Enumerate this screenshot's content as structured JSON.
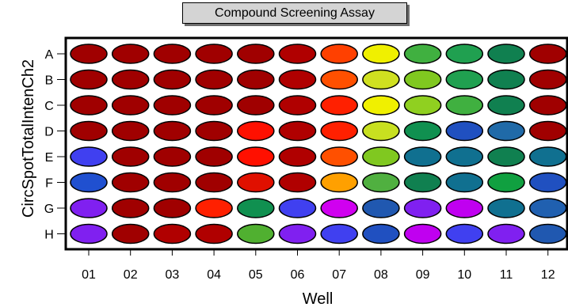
{
  "chart_data": {
    "type": "heatmap",
    "title": "Compound Screening Assay",
    "xlabel": "Well",
    "ylabel": "CircSpotTotalIntenCh2",
    "columns": [
      "01",
      "02",
      "03",
      "04",
      "05",
      "06",
      "07",
      "08",
      "09",
      "10",
      "11",
      "12"
    ],
    "rows": [
      "A",
      "B",
      "C",
      "D",
      "E",
      "F",
      "G",
      "H"
    ],
    "cells": [
      [
        "#a00000",
        "#a00000",
        "#a00000",
        "#a00000",
        "#a00000",
        "#b00000",
        "#ff4000",
        "#f0f000",
        "#40b040",
        "#20a050",
        "#108050",
        "#a00000"
      ],
      [
        "#a00000",
        "#a00000",
        "#a00000",
        "#a00000",
        "#a00000",
        "#b00000",
        "#ff5000",
        "#d0e020",
        "#80c820",
        "#20a050",
        "#108050",
        "#a00000"
      ],
      [
        "#a00000",
        "#a00000",
        "#a00000",
        "#a00000",
        "#a00000",
        "#b00000",
        "#ff2000",
        "#f0f000",
        "#90d020",
        "#40b040",
        "#108050",
        "#a00000"
      ],
      [
        "#a00000",
        "#a00000",
        "#a00000",
        "#a00000",
        "#ff1000",
        "#b00000",
        "#ff2000",
        "#c8e020",
        "#109050",
        "#2050c0",
        "#206aa8",
        "#a00000"
      ],
      [
        "#4040f0",
        "#a00000",
        "#a00000",
        "#a00000",
        "#ff1000",
        "#b00000",
        "#ff5000",
        "#80c820",
        "#107090",
        "#107090",
        "#108050",
        "#107090"
      ],
      [
        "#2050d0",
        "#a00000",
        "#a00000",
        "#a00000",
        "#e01000",
        "#b00000",
        "#ffa000",
        "#50b040",
        "#108050",
        "#107090",
        "#10a040",
        "#2050c0"
      ],
      [
        "#8020f0",
        "#a00000",
        "#a00000",
        "#ff2000",
        "#109050",
        "#4040f0",
        "#d000f0",
        "#2058b0",
        "#8020f0",
        "#c000f0",
        "#107090",
        "#2060b0"
      ],
      [
        "#8020f0",
        "#a00000",
        "#b00000",
        "#b00000",
        "#50b030",
        "#8020f0",
        "#4040f0",
        "#2050c0",
        "#c000f0",
        "#4040f0",
        "#8020f0",
        "#2058b0"
      ]
    ]
  }
}
